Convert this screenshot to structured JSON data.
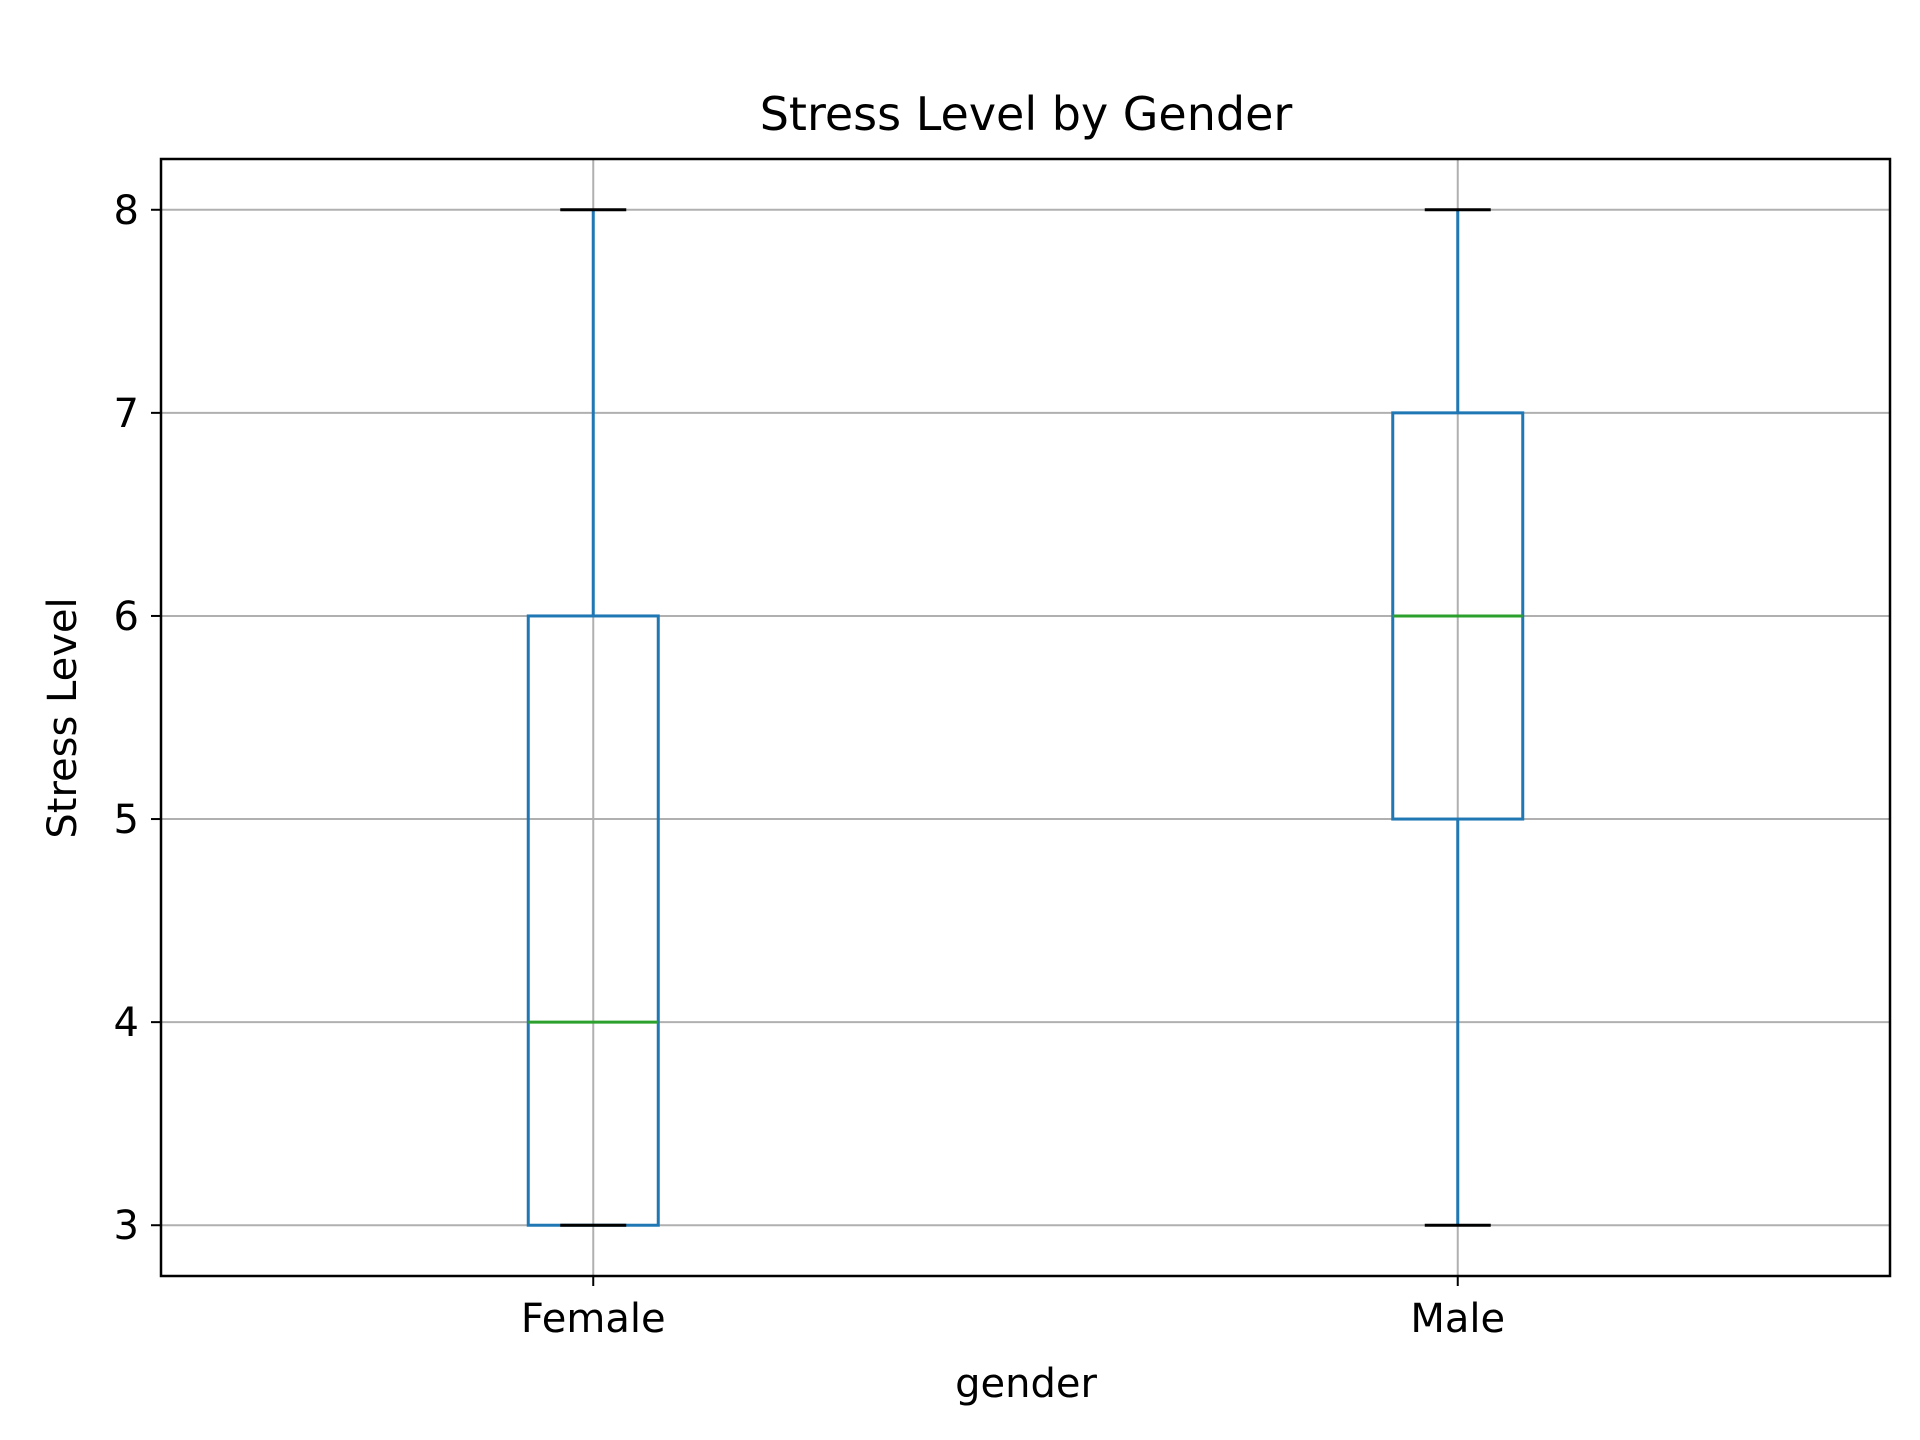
{
  "chart_data": {
    "type": "box",
    "title": "Stress Level by Gender",
    "xlabel": "gender",
    "ylabel": "Stress Level",
    "categories": [
      "Female",
      "Male"
    ],
    "boxes": [
      {
        "category": "Female",
        "whisker_low": 3,
        "q1": 3,
        "median": 4,
        "q3": 6,
        "whisker_high": 8
      },
      {
        "category": "Male",
        "whisker_low": 3,
        "q1": 5,
        "median": 6,
        "q3": 7,
        "whisker_high": 8
      }
    ],
    "yticks": [
      3,
      4,
      5,
      6,
      7,
      8
    ],
    "ylim": [
      2.75,
      8.25
    ],
    "grid": true,
    "colors": {
      "box": "#1f77b4",
      "median": "#2ca02c",
      "cap": "#000000",
      "grid": "#b0b0b0"
    }
  }
}
